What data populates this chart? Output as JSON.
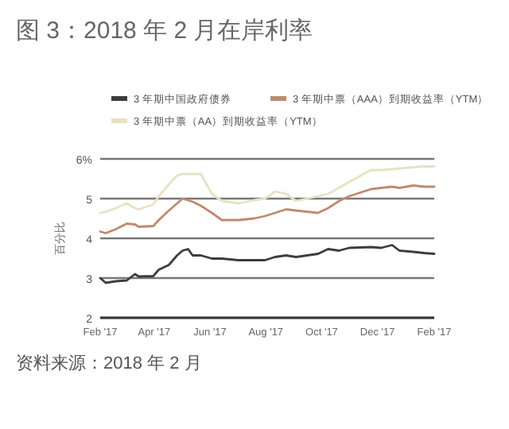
{
  "chart_data": {
    "type": "line",
    "title": "图 3：2018 年 2 月在岸利率",
    "ylabel": "百分比",
    "x": [
      "2017-02-01",
      "2017-02-07",
      "2017-02-18",
      "2017-03-02",
      "2017-03-11",
      "2017-03-15",
      "2017-03-31",
      "2017-04-06",
      "2017-04-17",
      "2017-04-26",
      "2017-05-02",
      "2017-05-08",
      "2017-05-13",
      "2017-05-22",
      "2017-06-03",
      "2017-06-14",
      "2017-07-02",
      "2017-07-19",
      "2017-07-31",
      "2017-08-11",
      "2017-08-23",
      "2017-09-03",
      "2017-09-27",
      "2017-10-08",
      "2017-10-20",
      "2017-10-31",
      "2017-11-24",
      "2017-12-05",
      "2017-12-17",
      "2017-12-25",
      "2018-01-09",
      "2018-01-21",
      "2018-02-01"
    ],
    "series": [
      {
        "name": "3 年期中国政府债券",
        "color": "#3d3d3d",
        "values": [
          3.0,
          2.88,
          2.92,
          2.94,
          3.1,
          3.04,
          3.05,
          3.21,
          3.33,
          3.57,
          3.69,
          3.73,
          3.57,
          3.57,
          3.49,
          3.49,
          3.45,
          3.45,
          3.45,
          3.53,
          3.57,
          3.53,
          3.61,
          3.73,
          3.69,
          3.76,
          3.78,
          3.76,
          3.83,
          3.69,
          3.66,
          3.63,
          3.61
        ]
      },
      {
        "name": "3 年期中票（AAA）到期收益率（YTM）",
        "color": "#c08a6e",
        "values": [
          4.17,
          4.13,
          4.23,
          4.37,
          4.35,
          4.29,
          4.31,
          4.46,
          4.7,
          4.88,
          5.0,
          4.96,
          4.92,
          4.82,
          4.64,
          4.46,
          4.46,
          4.5,
          4.56,
          4.64,
          4.73,
          4.7,
          4.64,
          4.76,
          4.94,
          5.06,
          5.24,
          5.27,
          5.3,
          5.27,
          5.33,
          5.3,
          5.3
        ]
      },
      {
        "name": "3 年期中票（AA）到期收益率（YTM）",
        "color": "#e6e2c4",
        "values": [
          4.64,
          4.67,
          4.76,
          4.88,
          4.76,
          4.73,
          4.85,
          5.06,
          5.36,
          5.58,
          5.62,
          5.62,
          5.62,
          5.62,
          5.12,
          4.94,
          4.88,
          4.96,
          5.0,
          5.18,
          5.12,
          4.94,
          5.06,
          5.12,
          5.27,
          5.42,
          5.72,
          5.72,
          5.74,
          5.76,
          5.79,
          5.81,
          5.81
        ]
      }
    ],
    "xlim": [
      "2017-02-01",
      "2018-02-01"
    ],
    "xticks": [
      {
        "value": "2017-02-01",
        "label": "Feb '17"
      },
      {
        "value": "2017-04-01",
        "label": "Apr '17"
      },
      {
        "value": "2017-06-01",
        "label": "Jun '17"
      },
      {
        "value": "2017-08-01",
        "label": "Aug '17"
      },
      {
        "value": "2017-10-01",
        "label": "Oct '17"
      },
      {
        "value": "2017-12-01",
        "label": "Dec '17"
      },
      {
        "value": "2018-02-01",
        "label": "Feb '17"
      }
    ],
    "ylim": [
      2,
      6
    ],
    "yticks": [
      2,
      3,
      4,
      5,
      {
        "value": 6,
        "label": "6%"
      }
    ],
    "grid": "y",
    "legend": "top",
    "annotations": [
      "资料来源：2018 年 2 月"
    ]
  }
}
